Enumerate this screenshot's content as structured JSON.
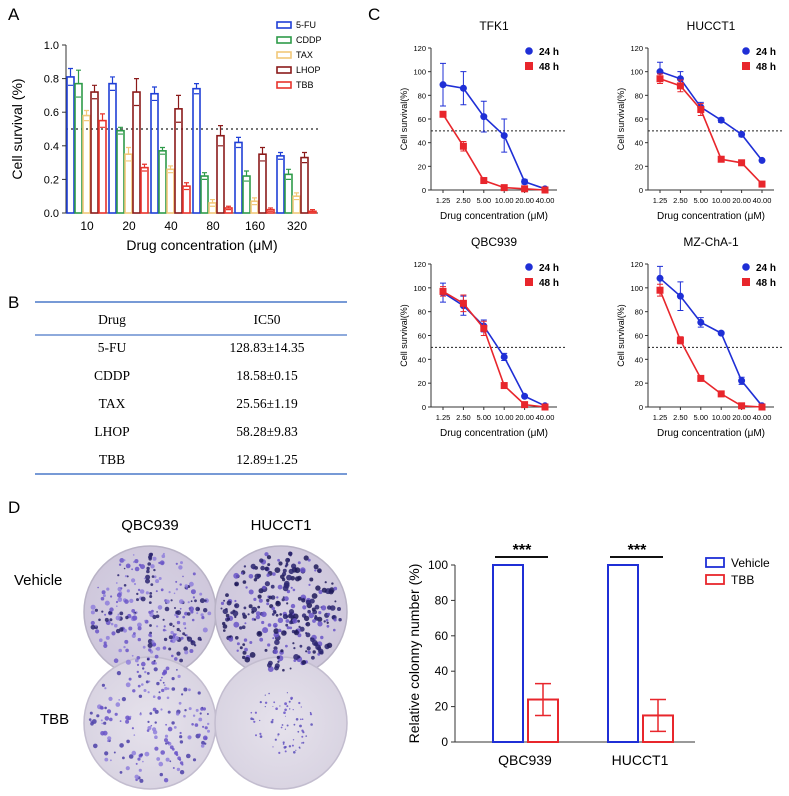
{
  "panel_letters": {
    "A": "A",
    "B": "B",
    "C": "C",
    "D": "D"
  },
  "colors": {
    "fu": "#1f3fd6",
    "cddp": "#2e9b49",
    "tax": "#f2c87a",
    "lhop": "#8b1a1a",
    "tbb": "#e8342c",
    "blue24": "#1f2fd6",
    "red48": "#e8262c",
    "dish_dark": "#2a2470",
    "dish_light": "#6a55c8"
  },
  "table": {
    "headers": [
      "Drug",
      "IC50"
    ],
    "rows": [
      {
        "drug": "5-FU",
        "ic50": "128.83±14.35"
      },
      {
        "drug": "CDDP",
        "ic50": "18.58±0.15"
      },
      {
        "drug": "TAX",
        "ic50": "25.56±1.19"
      },
      {
        "drug": "LHOP",
        "ic50": "58.28±9.83"
      },
      {
        "drug": "TBB",
        "ic50": "12.89±1.25"
      }
    ]
  },
  "colony_images": {
    "col1": "QBC939",
    "col2": "HUCCT1",
    "row1": "Vehicle",
    "row2": "TBB"
  },
  "chart_data": [
    {
      "id": "A",
      "type": "bar",
      "categories": [
        "10",
        "20",
        "40",
        "80",
        "160",
        "320"
      ],
      "xlabel": "Drug concentration (μM)",
      "ylabel": "Cell survival (%)",
      "ylim": [
        0,
        1.0
      ],
      "yticks": [
        "0.0",
        "0.2",
        "0.4",
        "0.6",
        "0.8",
        "1.0"
      ],
      "reference_line": 0.5,
      "legend_position": "top-right",
      "series": [
        {
          "name": "5-FU",
          "color": "#1f3fd6",
          "values": [
            0.81,
            0.77,
            0.71,
            0.74,
            0.42,
            0.34
          ],
          "errors": [
            0.05,
            0.04,
            0.04,
            0.03,
            0.03,
            0.02
          ]
        },
        {
          "name": "CDDP",
          "color": "#2e9b49",
          "values": [
            0.77,
            0.49,
            0.37,
            0.22,
            0.22,
            0.23
          ],
          "errors": [
            0.08,
            0.02,
            0.02,
            0.02,
            0.03,
            0.03
          ]
        },
        {
          "name": "TAX",
          "color": "#f2c87a",
          "values": [
            0.58,
            0.35,
            0.26,
            0.06,
            0.07,
            0.1
          ],
          "errors": [
            0.03,
            0.04,
            0.02,
            0.02,
            0.02,
            0.02
          ]
        },
        {
          "name": "LHOP",
          "color": "#8b1a1a",
          "values": [
            0.72,
            0.72,
            0.62,
            0.46,
            0.35,
            0.33
          ],
          "errors": [
            0.04,
            0.08,
            0.08,
            0.06,
            0.04,
            0.03
          ]
        },
        {
          "name": "TBB",
          "color": "#e8342c",
          "values": [
            0.55,
            0.27,
            0.16,
            0.03,
            0.02,
            0.01
          ],
          "errors": [
            0.04,
            0.02,
            0.02,
            0.01,
            0.01,
            0.01
          ]
        }
      ]
    },
    {
      "id": "C1",
      "type": "line",
      "title": "TFK1",
      "categories": [
        "1.25",
        "2.50",
        "5.00",
        "10.00",
        "20.00",
        "40.00"
      ],
      "xlabel": "Drug concentration (μM)",
      "ylabel": "Cell survival(%)",
      "ylim": [
        0,
        120
      ],
      "yticks": [
        "0",
        "20",
        "40",
        "60",
        "80",
        "100",
        "120"
      ],
      "reference_line": 50,
      "legend_position": "top-right",
      "series": [
        {
          "name": "24 h",
          "color": "#1f2fd6",
          "values": [
            89,
            86,
            62,
            46,
            7,
            1
          ],
          "errors": [
            18,
            14,
            13,
            14,
            2,
            1
          ]
        },
        {
          "name": "48 h",
          "color": "#e8262c",
          "values": [
            64,
            37,
            8,
            2,
            1,
            0
          ],
          "errors": [
            2,
            4,
            1,
            1,
            1,
            1
          ]
        }
      ]
    },
    {
      "id": "C2",
      "type": "line",
      "title": "HUCCT1",
      "categories": [
        "1.25",
        "2.50",
        "5.00",
        "10.00",
        "20.00",
        "40.00"
      ],
      "xlabel": "Drug concentration (μM)",
      "ylabel": "Cell survival(%)",
      "ylim": [
        0,
        120
      ],
      "yticks": [
        "0",
        "20",
        "40",
        "60",
        "80",
        "100",
        "120"
      ],
      "reference_line": 50,
      "legend_position": "top-right",
      "series": [
        {
          "name": "24 h",
          "color": "#1f2fd6",
          "values": [
            100,
            94,
            70,
            59,
            47,
            25
          ],
          "errors": [
            8,
            6,
            4,
            2,
            2,
            1
          ]
        },
        {
          "name": "48 h",
          "color": "#e8262c",
          "values": [
            94,
            88,
            68,
            26,
            23,
            5
          ],
          "errors": [
            4,
            5,
            5,
            1,
            1,
            1
          ]
        }
      ]
    },
    {
      "id": "C3",
      "type": "line",
      "title": "QBC939",
      "categories": [
        "1.25",
        "2.50",
        "5.00",
        "10.00",
        "20.00",
        "40.00"
      ],
      "xlabel": "Drug concentration (μM)",
      "ylabel": "Cell survival(%)",
      "ylim": [
        0,
        120
      ],
      "yticks": [
        "0",
        "20",
        "40",
        "60",
        "80",
        "100",
        "120"
      ],
      "reference_line": 50,
      "legend_position": "top-right",
      "series": [
        {
          "name": "24 h",
          "color": "#1f2fd6",
          "values": [
            96,
            85,
            68,
            42,
            9,
            1
          ],
          "errors": [
            8,
            8,
            5,
            3,
            1,
            1
          ]
        },
        {
          "name": "48 h",
          "color": "#e8262c",
          "values": [
            97,
            87,
            66,
            18,
            2,
            0
          ],
          "errors": [
            4,
            7,
            6,
            2,
            1,
            1
          ]
        }
      ]
    },
    {
      "id": "C4",
      "type": "line",
      "title": "MZ-ChA-1",
      "categories": [
        "1.25",
        "2.50",
        "5.00",
        "10.00",
        "20.00",
        "40.00"
      ],
      "xlabel": "Drug concentration (μM)",
      "ylabel": "Cell survival(%)",
      "ylim": [
        0,
        120
      ],
      "yticks": [
        "0",
        "20",
        "40",
        "60",
        "80",
        "100",
        "120"
      ],
      "reference_line": 50,
      "legend_position": "top-right",
      "series": [
        {
          "name": "24 h",
          "color": "#1f2fd6",
          "values": [
            108,
            93,
            71,
            62,
            22,
            1
          ],
          "errors": [
            10,
            12,
            4,
            1,
            3,
            1
          ]
        },
        {
          "name": "48 h",
          "color": "#e8262c",
          "values": [
            98,
            56,
            24,
            11,
            1,
            0
          ],
          "errors": [
            5,
            3,
            2,
            1,
            1,
            1
          ]
        }
      ]
    },
    {
      "id": "D",
      "type": "bar",
      "categories": [
        "QBC939",
        "HUCCT1"
      ],
      "xlabel": "",
      "ylabel": "Relative colonny number (%)",
      "ylim": [
        0,
        100
      ],
      "yticks": [
        "0",
        "20",
        "40",
        "60",
        "80",
        "100"
      ],
      "legend_position": "top-right",
      "significance": [
        "***",
        "***"
      ],
      "series": [
        {
          "name": "Vehicle",
          "color": "#1f2fd6",
          "values": [
            100,
            100
          ],
          "errors": [
            0,
            0
          ]
        },
        {
          "name": "TBB",
          "color": "#e8262c",
          "values": [
            24,
            15
          ],
          "errors": [
            9,
            9
          ]
        }
      ]
    }
  ]
}
